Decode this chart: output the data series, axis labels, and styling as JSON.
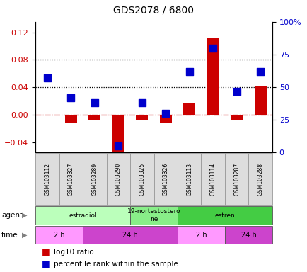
{
  "title": "GDS2078 / 6800",
  "samples": [
    "GSM103112",
    "GSM103327",
    "GSM103289",
    "GSM103290",
    "GSM103325",
    "GSM103326",
    "GSM103113",
    "GSM103114",
    "GSM103287",
    "GSM103288"
  ],
  "log10_ratio": [
    0.0,
    -0.012,
    -0.008,
    -0.055,
    -0.008,
    -0.012,
    0.018,
    0.112,
    -0.008,
    0.042
  ],
  "percentile_rank": [
    57,
    42,
    38,
    5,
    38,
    30,
    62,
    80,
    47,
    62
  ],
  "ylim_left": [
    -0.055,
    0.135
  ],
  "ylim_right": [
    0,
    100
  ],
  "yticks_left": [
    -0.04,
    0.0,
    0.04,
    0.08,
    0.12
  ],
  "yticks_right": [
    0,
    25,
    50,
    75,
    100
  ],
  "hlines_dotted": [
    0.04,
    0.08
  ],
  "hline_dashdot": 0.0,
  "agent_labels": [
    {
      "label": "estradiol",
      "start": 0,
      "end": 4,
      "color": "#bbffbb"
    },
    {
      "label": "19-nortestostero\nne",
      "start": 4,
      "end": 6,
      "color": "#88ee88"
    },
    {
      "label": "estren",
      "start": 6,
      "end": 10,
      "color": "#44cc44"
    }
  ],
  "time_labels": [
    {
      "label": "2 h",
      "start": 0,
      "end": 2,
      "color": "#ff99ff"
    },
    {
      "label": "24 h",
      "start": 2,
      "end": 6,
      "color": "#cc44cc"
    },
    {
      "label": "2 h",
      "start": 6,
      "end": 8,
      "color": "#ff99ff"
    },
    {
      "label": "24 h",
      "start": 8,
      "end": 10,
      "color": "#cc44cc"
    }
  ],
  "bar_color": "#cc0000",
  "point_color": "#0000cc",
  "bar_width": 0.5,
  "point_size": 45
}
